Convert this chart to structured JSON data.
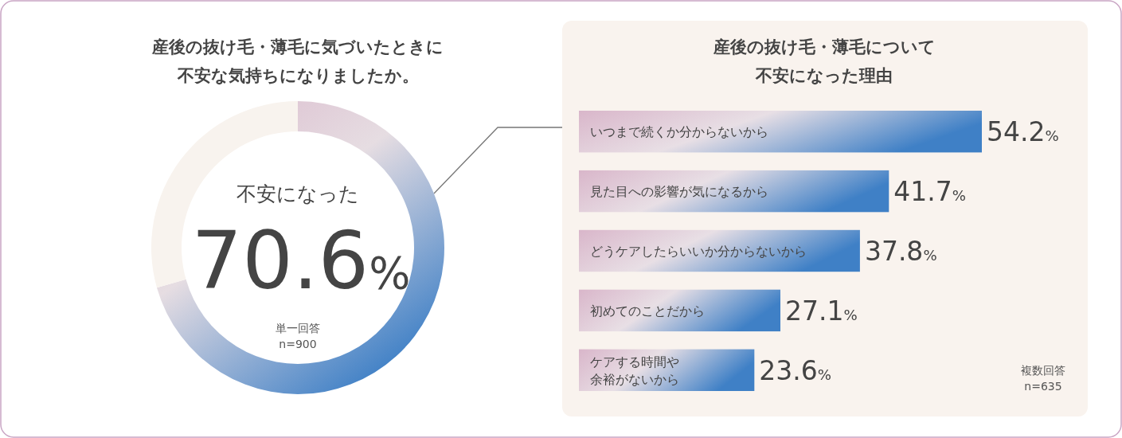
{
  "chart_data": [
    {
      "type": "donut",
      "title": "産後の抜け毛・薄毛に気づいたときに不安な気持ちになりましたか。",
      "categories": [
        "不安になった",
        null
      ],
      "values": [
        70.6,
        29.4
      ],
      "colors": [
        "#3f80c6",
        "#f8f3ee"
      ],
      "value_labels": [
        "70.6%",
        null
      ],
      "annotations": [
        "単一回答",
        "n=900"
      ]
    },
    {
      "type": "bar",
      "orientation": "horizontal",
      "title": "産後の抜け毛・薄毛について不安になった理由",
      "categories": [
        "いつまで続くか分からないから",
        "見た目への影響が気になるから",
        "どうケアしたらいいか分からないから",
        "初めてのことだから",
        "ケアする時間や余裕がないから"
      ],
      "values": [
        54.2,
        41.7,
        37.8,
        27.1,
        23.6
      ],
      "color": "#3f80c6",
      "value_labels": [
        "54.2%",
        "41.7%",
        "37.8%",
        "27.1%",
        "23.6%"
      ],
      "annotations": [
        "複数回答",
        "n=635"
      ]
    }
  ]
}
